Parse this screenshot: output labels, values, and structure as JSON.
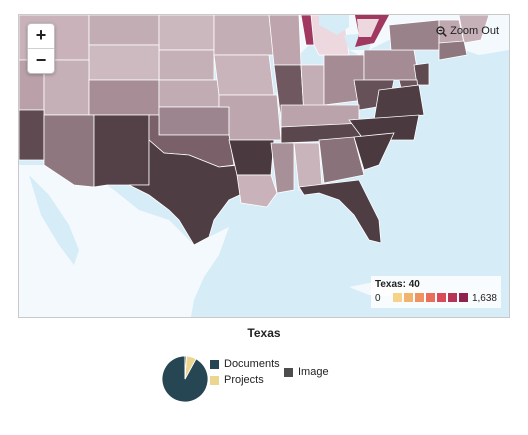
{
  "map": {
    "zoom_in_label": "+",
    "zoom_out_label": "−",
    "zoom_out_link": "Zoom Out",
    "zoom_out_icon": "magnifier-minus-icon",
    "colors": {
      "water": "#d6ecf7",
      "foreign_land": "#f3f9fd",
      "border": "#ffffff"
    }
  },
  "legend": {
    "title": "Texas: 40",
    "min_label": "0",
    "max_label": "1,638",
    "swatch_colors": [
      "#f5d48a",
      "#f2b36d",
      "#ee9460",
      "#e8705a",
      "#d94b59",
      "#b63456",
      "#90224f"
    ]
  },
  "pie_chart": {
    "title": "Texas",
    "legend_items": [
      {
        "label": "Documents",
        "color": "#264653"
      },
      {
        "label": "Image",
        "color": "#4d4d4d"
      },
      {
        "label": "Projects",
        "color": "#ecd58f"
      }
    ]
  },
  "chart_data": {
    "type": "pie",
    "title": "Texas",
    "categories": [
      "Documents",
      "Projects",
      "Image"
    ],
    "values": [
      92,
      7,
      1
    ],
    "colors": [
      "#264653",
      "#ecd58f",
      "#4d4d4d"
    ]
  }
}
